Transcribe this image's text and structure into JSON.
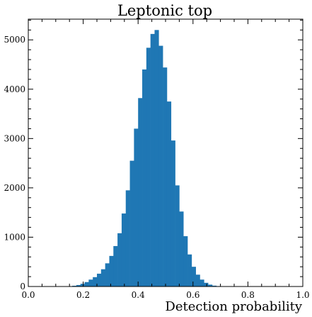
{
  "chart_data": {
    "type": "bar",
    "title": "Leptonic top",
    "xlabel": "Detection probability",
    "ylabel": "",
    "xlim": [
      0.0,
      1.0
    ],
    "ylim": [
      0,
      5420
    ],
    "xticks": [
      0.0,
      0.2,
      0.4,
      0.6,
      0.8,
      1.0
    ],
    "xtick_labels": [
      "0.0",
      "0.2",
      "0.4",
      "0.6",
      "0.8",
      "1.0"
    ],
    "yticks": [
      0,
      1000,
      2000,
      3000,
      4000,
      5000
    ],
    "ytick_labels": [
      "0",
      "1000",
      "2000",
      "3000",
      "4000",
      "5000"
    ],
    "x_minor_step": 0.05,
    "y_minor_step": 200,
    "bin_width": 0.015,
    "bin_start": 0.01,
    "values": [
      0,
      0,
      0,
      0,
      0,
      0,
      0,
      0,
      2,
      5,
      15,
      30,
      55,
      90,
      140,
      190,
      260,
      350,
      470,
      620,
      820,
      1080,
      1480,
      1950,
      2550,
      3200,
      3820,
      4400,
      4840,
      5120,
      5200,
      4880,
      4440,
      3750,
      2960,
      2050,
      1520,
      1020,
      650,
      400,
      240,
      140,
      75,
      38,
      17,
      8,
      3,
      1,
      0,
      0,
      0,
      0,
      0,
      0,
      0,
      0,
      0,
      0,
      0,
      0,
      0,
      0,
      0,
      0,
      0,
      0
    ],
    "grid": false,
    "color": "#1f77b4"
  }
}
